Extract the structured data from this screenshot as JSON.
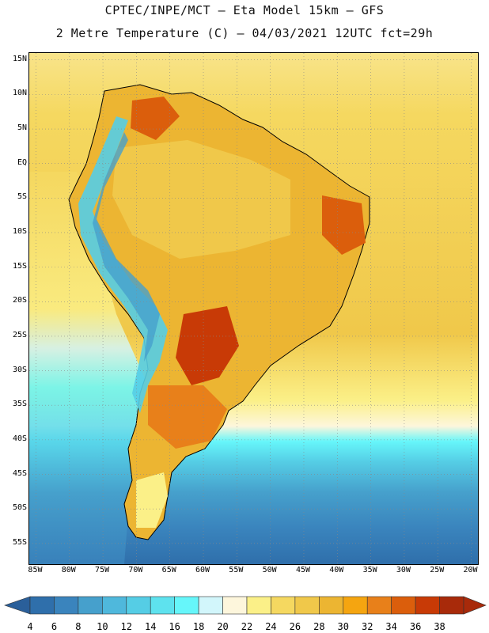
{
  "title": {
    "line1": "CPTEC/INPE/MCT –  Eta Model 15km – GFS",
    "line2": "2 Metre Temperature (C) – 04/03/2021 12UTC fct=29h"
  },
  "map": {
    "region": "South America",
    "lat_labels": [
      "15N",
      "10N",
      "5N",
      "EQ",
      "5S",
      "10S",
      "15S",
      "20S",
      "25S",
      "30S",
      "35S",
      "40S",
      "45S",
      "50S",
      "55S"
    ],
    "lon_labels": [
      "85W",
      "80W",
      "75W",
      "70W",
      "65W",
      "60W",
      "55W",
      "50W",
      "45W",
      "40W",
      "35W",
      "30W",
      "25W",
      "20W"
    ],
    "lat_range": [
      -58,
      16
    ],
    "lon_range": [
      -86,
      -19
    ],
    "grid": "dotted"
  },
  "colorbar": {
    "labels": [
      "4",
      "6",
      "8",
      "10",
      "12",
      "14",
      "16",
      "18",
      "20",
      "22",
      "24",
      "26",
      "28",
      "30",
      "32",
      "34",
      "36",
      "38"
    ],
    "colors": [
      "#2f6fab",
      "#3a84bd",
      "#46a0cc",
      "#4fb8dc",
      "#55cde5",
      "#5ee2ee",
      "#66f6fa",
      "#d2f6fb",
      "#fdf6dc",
      "#fbf088",
      "#f5d860",
      "#f0c84a",
      "#ecb532",
      "#f5a510",
      "#e8801a",
      "#db5e0c",
      "#c83a06",
      "#a82a0a"
    ],
    "min_arrow_color": "#2a5f9a",
    "max_arrow_color": "#a82a0a",
    "unit": "C"
  }
}
